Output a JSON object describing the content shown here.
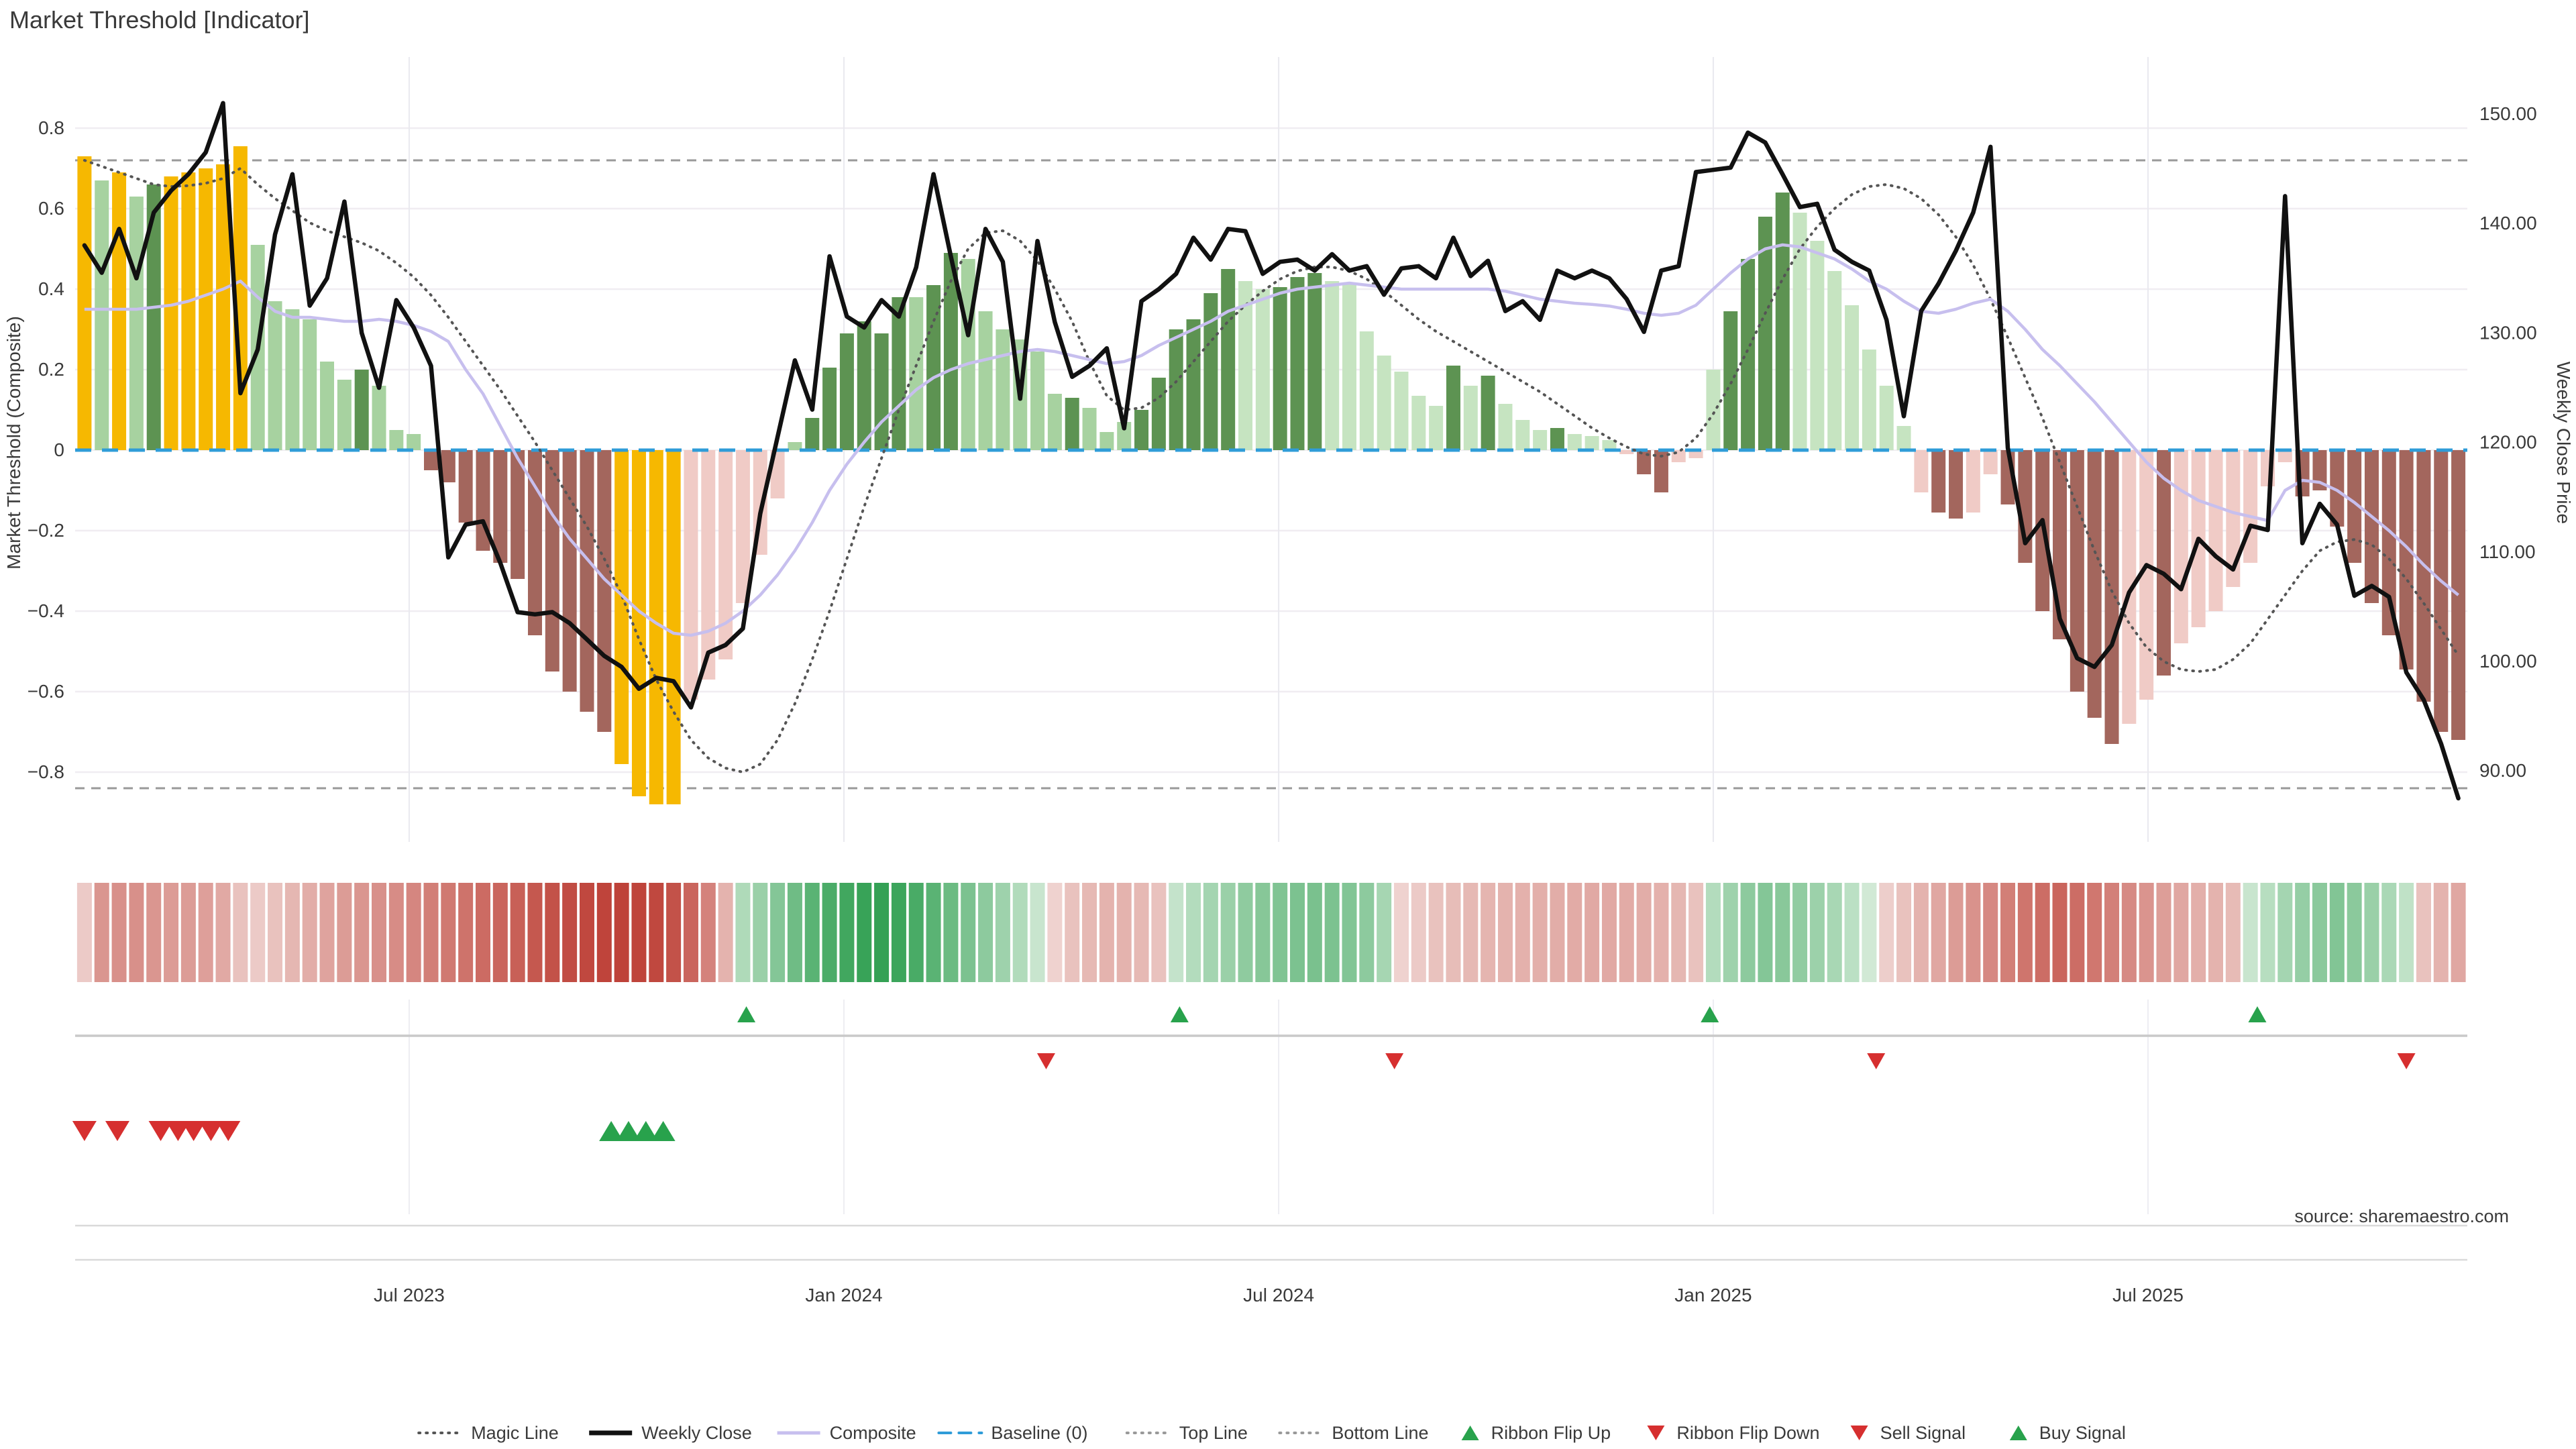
{
  "title": "Market Threshold [Indicator]",
  "source_note": "source: sharemaestro.com",
  "axes": {
    "left_label": "Market Threshold (Composite)",
    "right_label": "Weekly Close Price",
    "left_ticks": [
      "0.8",
      "0.6",
      "0.4",
      "0.2",
      "0",
      "−0.2",
      "−0.4",
      "−0.6",
      "−0.8"
    ],
    "right_ticks": [
      "150.00",
      "140.00",
      "130.00",
      "120.00",
      "110.00",
      "100.00",
      "90.00"
    ],
    "x_ticks": [
      "Jul 2023",
      "Jan 2024",
      "Jul 2024",
      "Jan 2025",
      "Jul 2025"
    ]
  },
  "legend": {
    "items": [
      {
        "label": "Magic Line",
        "type": "dotted",
        "color": "#555555"
      },
      {
        "label": "Weekly Close",
        "type": "solid",
        "color": "#111111"
      },
      {
        "label": "Composite",
        "type": "solid",
        "color": "#c7bfee"
      },
      {
        "label": "Baseline (0)",
        "type": "dashed",
        "color": "#2f9cd8"
      },
      {
        "label": "Top Line",
        "type": "dotted",
        "color": "#999999"
      },
      {
        "label": "Bottom Line",
        "type": "dotted",
        "color": "#999999"
      },
      {
        "label": "Ribbon Flip Up",
        "type": "tri-up",
        "color": "#28a24c"
      },
      {
        "label": "Ribbon Flip Down",
        "type": "tri-down",
        "color": "#d62f2f"
      },
      {
        "label": "Sell Signal",
        "type": "tri-down",
        "color": "#d62f2f"
      },
      {
        "label": "Buy Signal",
        "type": "tri-up",
        "color": "#28a24c"
      }
    ]
  },
  "colors": {
    "bar_yellow": "#f6b801",
    "bar_dark_green": "#5d9352",
    "bar_light_green": "#a7d2a0",
    "bar_pale_green": "#c6e4c1",
    "bar_light_pink": "#f0cbc6",
    "bar_maroon": "#a3665d",
    "weekly_close": "#111111",
    "composite": "#c7bfee",
    "magic": "#555555",
    "baseline": "#2f9cd8",
    "guide": "#999999",
    "grid_h": "#f0edf1",
    "grid_v": "#e9e9ef",
    "signal_green": "#28a24c",
    "signal_red": "#d62f2f",
    "ribbon_green_hi": "#2d9e4f",
    "ribbon_green_lo": "#eaf5ea",
    "ribbon_red_hi": "#bd4036",
    "ribbon_red_lo": "#f8edeb"
  },
  "chart_data": {
    "type": "combo (bar histogram + lines + ribbon + signals)",
    "title": "Market Threshold [Indicator]",
    "left_axis": {
      "label": "Market Threshold (Composite)",
      "ticks": [
        0.8,
        0.6,
        0.4,
        0.2,
        0,
        -0.2,
        -0.4,
        -0.6,
        -0.8
      ],
      "range": [
        -0.98,
        0.97
      ]
    },
    "right_axis": {
      "label": "Weekly Close Price",
      "ticks": [
        150,
        140,
        130,
        120,
        110,
        100,
        90
      ]
    },
    "x_tick_labels": [
      "Jul 2023",
      "Jan 2024",
      "Jul 2024",
      "Jan 2025",
      "Jul 2025"
    ],
    "x_tick_week_positions": [
      18.74,
      43.83,
      68.92,
      94.0,
      119.09
    ],
    "top_line": 0.72,
    "bottom_line": -0.84,
    "baseline": 0,
    "weeks": 138,
    "threshold_bars": [
      0.73,
      0.67,
      0.69,
      0.63,
      0.66,
      0.68,
      0.69,
      0.7,
      0.71,
      0.755,
      0.51,
      0.37,
      0.35,
      0.325,
      0.22,
      0.175,
      0.2,
      0.16,
      0.05,
      0.04,
      -0.05,
      -0.08,
      -0.18,
      -0.25,
      -0.28,
      -0.32,
      -0.46,
      -0.55,
      -0.6,
      -0.65,
      -0.7,
      -0.78,
      -0.86,
      -0.88,
      -0.88,
      -0.62,
      -0.57,
      -0.52,
      -0.38,
      -0.26,
      -0.12,
      0.02,
      0.08,
      0.205,
      0.29,
      0.32,
      0.29,
      0.38,
      0.38,
      0.41,
      0.49,
      0.475,
      0.345,
      0.3,
      0.275,
      0.245,
      0.14,
      0.13,
      0.105,
      0.045,
      0.07,
      0.1,
      0.18,
      0.3,
      0.325,
      0.39,
      0.45,
      0.42,
      0.4,
      0.405,
      0.43,
      0.44,
      0.42,
      0.415,
      0.295,
      0.235,
      0.195,
      0.135,
      0.11,
      0.21,
      0.16,
      0.185,
      0.115,
      0.075,
      0.05,
      0.055,
      0.04,
      0.035,
      0.025,
      -0.01,
      -0.06,
      -0.105,
      -0.03,
      -0.02,
      0.2,
      0.345,
      0.475,
      0.58,
      0.64,
      0.59,
      0.52,
      0.445,
      0.36,
      0.25,
      0.16,
      0.06,
      -0.105,
      -0.155,
      -0.17,
      -0.155,
      -0.06,
      -0.135,
      -0.28,
      -0.4,
      -0.47,
      -0.6,
      -0.665,
      -0.73,
      -0.68,
      -0.62,
      -0.56,
      -0.48,
      -0.44,
      -0.4,
      -0.34,
      -0.28,
      -0.09,
      -0.03,
      -0.115,
      -0.1,
      -0.19,
      -0.28,
      -0.38,
      -0.46,
      -0.545,
      -0.625,
      -0.7,
      -0.72
    ],
    "bar_colors": [
      "y",
      "lg",
      "y",
      "lg",
      "dg",
      "y",
      "y",
      "y",
      "y",
      "y",
      "lg",
      "lg",
      "lg",
      "lg",
      "lg",
      "lg",
      "dg",
      "lg",
      "lg",
      "lg",
      "mr",
      "mr",
      "mr",
      "mr",
      "mr",
      "mr",
      "mr",
      "mr",
      "mr",
      "mr",
      "mr",
      "y",
      "y",
      "y",
      "y",
      "lp",
      "lp",
      "lp",
      "lp",
      "lp",
      "lp",
      "lg",
      "dg",
      "dg",
      "dg",
      "dg",
      "dg",
      "dg",
      "lg",
      "dg",
      "dg",
      "lg",
      "lg",
      "lg",
      "lg",
      "lg",
      "lg",
      "dg",
      "lg",
      "lg",
      "lg",
      "dg",
      "dg",
      "dg",
      "dg",
      "dg",
      "dg",
      "pg",
      "pg",
      "dg",
      "dg",
      "dg",
      "pg",
      "pg",
      "pg",
      "pg",
      "pg",
      "pg",
      "pg",
      "dg",
      "pg",
      "dg",
      "pg",
      "pg",
      "pg",
      "dg",
      "pg",
      "pg",
      "pg",
      "lp",
      "mr",
      "mr",
      "lp",
      "lp",
      "pg",
      "dg",
      "dg",
      "dg",
      "dg",
      "pg",
      "pg",
      "pg",
      "pg",
      "pg",
      "pg",
      "pg",
      "lp",
      "mr",
      "mr",
      "lp",
      "lp",
      "mr",
      "mr",
      "mr",
      "mr",
      "mr",
      "mr",
      "mr",
      "lp",
      "lp",
      "mr",
      "lp",
      "lp",
      "lp",
      "lp",
      "lp",
      "lp",
      "lp",
      "mr",
      "mr",
      "mr",
      "mr",
      "mr",
      "mr",
      "mr",
      "mr",
      "mr",
      "mr"
    ],
    "weekly_close": [
      138,
      135.5,
      139.5,
      135,
      141,
      143,
      144.5,
      146.5,
      151,
      124.5,
      128.5,
      139,
      144.5,
      132.5,
      135,
      142,
      130,
      125,
      133,
      130.5,
      127,
      109.5,
      112.5,
      112.8,
      109,
      104.5,
      104.3,
      104.5,
      103.5,
      102,
      100.5,
      99.5,
      97.5,
      98.5,
      98.2,
      95.8,
      100.8,
      101.5,
      103,
      113.5,
      120.5,
      127.5,
      123,
      137,
      131.5,
      130.5,
      133,
      131.5,
      136,
      144.5,
      137,
      129.8,
      139.5,
      136.5,
      124,
      138.4,
      131,
      126,
      127,
      128.6,
      121.3,
      132.9,
      134,
      135.4,
      138.7,
      136.7,
      139.5,
      139.3,
      135.4,
      136.5,
      136.7,
      135.7,
      137.2,
      135.7,
      136.1,
      133.5,
      135.9,
      136.1,
      135,
      138.7,
      135.2,
      136.6,
      132,
      132.9,
      131.2,
      135.7,
      135,
      135.7,
      135,
      133.1,
      130.1,
      135.7,
      136.1,
      144.7,
      144.9,
      145.1,
      148.3,
      147.4,
      144.5,
      141.5,
      141.8,
      137.6,
      136.5,
      135.7,
      131.2,
      122.4,
      132,
      134.5,
      137.5,
      141,
      147,
      119.5,
      110.8,
      112.9,
      103.9,
      100.3,
      99.5,
      101.5,
      106.3,
      108.8,
      108,
      106.6,
      111.2,
      109.6,
      108.4,
      112.4,
      112,
      142.5,
      110.8,
      114.4,
      112.5,
      106,
      106.9,
      105.9,
      99,
      96.5,
      92.5,
      87.5
    ],
    "composite": [
      0.35,
      0.35,
      0.35,
      0.35,
      0.355,
      0.36,
      0.37,
      0.385,
      0.4,
      0.42,
      0.38,
      0.345,
      0.33,
      0.33,
      0.325,
      0.32,
      0.32,
      0.325,
      0.32,
      0.31,
      0.295,
      0.27,
      0.2,
      0.14,
      0.06,
      -0.02,
      -0.09,
      -0.16,
      -0.22,
      -0.27,
      -0.32,
      -0.36,
      -0.4,
      -0.43,
      -0.455,
      -0.46,
      -0.45,
      -0.43,
      -0.4,
      -0.36,
      -0.31,
      -0.25,
      -0.18,
      -0.1,
      -0.035,
      0.02,
      0.07,
      0.11,
      0.15,
      0.18,
      0.2,
      0.215,
      0.225,
      0.235,
      0.245,
      0.25,
      0.245,
      0.235,
      0.225,
      0.215,
      0.22,
      0.235,
      0.26,
      0.28,
      0.3,
      0.32,
      0.345,
      0.36,
      0.375,
      0.39,
      0.4,
      0.405,
      0.41,
      0.415,
      0.41,
      0.405,
      0.4,
      0.4,
      0.4,
      0.4,
      0.4,
      0.4,
      0.395,
      0.385,
      0.375,
      0.37,
      0.365,
      0.362,
      0.358,
      0.35,
      0.34,
      0.335,
      0.34,
      0.36,
      0.4,
      0.44,
      0.475,
      0.5,
      0.51,
      0.505,
      0.49,
      0.475,
      0.45,
      0.42,
      0.4,
      0.37,
      0.345,
      0.34,
      0.35,
      0.365,
      0.375,
      0.345,
      0.3,
      0.25,
      0.21,
      0.165,
      0.12,
      0.07,
      0.02,
      -0.03,
      -0.07,
      -0.1,
      -0.125,
      -0.14,
      -0.155,
      -0.165,
      -0.175,
      -0.1,
      -0.075,
      -0.08,
      -0.1,
      -0.13,
      -0.165,
      -0.2,
      -0.24,
      -0.285,
      -0.325,
      -0.36
    ],
    "magic_line": [
      0.72,
      0.705,
      0.69,
      0.675,
      0.66,
      0.655,
      0.657,
      0.663,
      0.675,
      0.7,
      0.66,
      0.625,
      0.595,
      0.565,
      0.545,
      0.53,
      0.515,
      0.495,
      0.465,
      0.43,
      0.385,
      0.33,
      0.27,
      0.21,
      0.15,
      0.085,
      0.02,
      -0.05,
      -0.12,
      -0.19,
      -0.27,
      -0.36,
      -0.47,
      -0.57,
      -0.65,
      -0.72,
      -0.765,
      -0.79,
      -0.8,
      -0.78,
      -0.72,
      -0.63,
      -0.52,
      -0.4,
      -0.27,
      -0.14,
      -0.02,
      0.1,
      0.21,
      0.32,
      0.42,
      0.5,
      0.54,
      0.545,
      0.52,
      0.47,
      0.4,
      0.32,
      0.22,
      0.135,
      0.1,
      0.105,
      0.13,
      0.17,
      0.22,
      0.27,
      0.32,
      0.36,
      0.395,
      0.425,
      0.445,
      0.455,
      0.455,
      0.445,
      0.425,
      0.395,
      0.36,
      0.325,
      0.295,
      0.27,
      0.245,
      0.22,
      0.195,
      0.17,
      0.145,
      0.115,
      0.085,
      0.055,
      0.03,
      0.008,
      -0.01,
      -0.015,
      -0.005,
      0.03,
      0.09,
      0.165,
      0.25,
      0.34,
      0.425,
      0.5,
      0.555,
      0.6,
      0.635,
      0.655,
      0.66,
      0.65,
      0.625,
      0.585,
      0.53,
      0.46,
      0.375,
      0.28,
      0.18,
      0.08,
      -0.03,
      -0.14,
      -0.25,
      -0.35,
      -0.43,
      -0.49,
      -0.525,
      -0.545,
      -0.55,
      -0.545,
      -0.52,
      -0.48,
      -0.42,
      -0.36,
      -0.3,
      -0.25,
      -0.228,
      -0.222,
      -0.235,
      -0.27,
      -0.32,
      -0.38,
      -0.445,
      -0.51
    ],
    "ribbon": [
      -0.18,
      -0.45,
      -0.48,
      -0.48,
      -0.45,
      -0.42,
      -0.42,
      -0.4,
      -0.35,
      -0.22,
      -0.18,
      -0.22,
      -0.28,
      -0.33,
      -0.38,
      -0.42,
      -0.45,
      -0.48,
      -0.5,
      -0.53,
      -0.57,
      -0.6,
      -0.63,
      -0.67,
      -0.7,
      -0.73,
      -0.77,
      -0.8,
      -0.83,
      -0.85,
      -0.87,
      -0.88,
      -0.87,
      -0.85,
      -0.8,
      -0.7,
      -0.55,
      -0.3,
      0.28,
      0.38,
      0.48,
      0.58,
      0.68,
      0.75,
      0.8,
      0.84,
      0.86,
      0.82,
      0.76,
      0.68,
      0.6,
      0.52,
      0.44,
      0.36,
      0.27,
      0.16,
      -0.14,
      -0.22,
      -0.27,
      -0.3,
      -0.3,
      -0.27,
      -0.22,
      0.18,
      0.26,
      0.33,
      0.38,
      0.43,
      0.47,
      0.5,
      0.52,
      0.53,
      0.52,
      0.49,
      0.44,
      0.32,
      -0.14,
      -0.18,
      -0.22,
      -0.25,
      -0.27,
      -0.29,
      -0.3,
      -0.31,
      -0.32,
      -0.33,
      -0.34,
      -0.35,
      -0.35,
      -0.34,
      -0.33,
      -0.31,
      -0.28,
      -0.22,
      0.26,
      0.36,
      0.44,
      0.48,
      0.46,
      0.42,
      0.37,
      0.31,
      0.22,
      0.12,
      -0.16,
      -0.22,
      -0.3,
      -0.36,
      -0.42,
      -0.47,
      -0.52,
      -0.57,
      -0.62,
      -0.66,
      -0.7,
      -0.66,
      -0.61,
      -0.56,
      -0.51,
      -0.46,
      -0.41,
      -0.36,
      -0.32,
      -0.3,
      -0.26,
      0.16,
      0.24,
      0.33,
      0.4,
      0.45,
      0.49,
      0.45,
      0.38,
      0.3,
      0.2,
      -0.22,
      -0.3,
      -0.36
    ],
    "signals": {
      "ribbon_flip_up_weeks": [
        38.2,
        63.2,
        93.8,
        125.4
      ],
      "ribbon_flip_down_weeks": [
        55.5,
        75.6,
        103.4,
        134.0
      ],
      "sell_weeks": [
        0,
        1.9,
        4.4,
        5.4,
        6.3,
        7.3,
        8.3
      ],
      "buy_weeks": [
        30.4,
        31.4,
        32.4,
        33.4
      ]
    },
    "layout_hints": {
      "grid": "on",
      "legend_position": "bottom-center",
      "ribbon_strip": "below main plot",
      "signal_rows": [
        "ribbon flip up",
        "ribbon flip down",
        "sell/buy"
      ]
    }
  }
}
